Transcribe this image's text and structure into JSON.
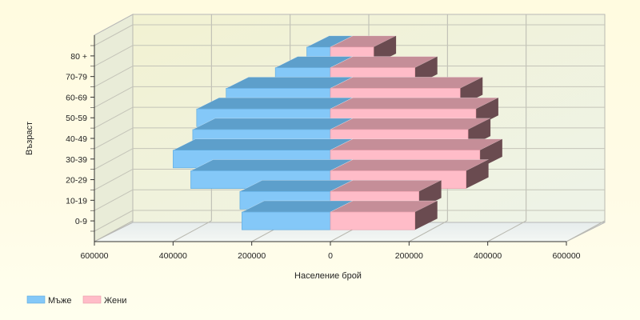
{
  "chart_data": {
    "type": "bar",
    "orientation": "horizontal",
    "style": "3d population pyramid",
    "categories": [
      "0-9",
      "10-19",
      "20-29",
      "30-39",
      "40-49",
      "50-59",
      "60-69",
      "70-79",
      "80 +"
    ],
    "series": [
      {
        "name": "Мъже",
        "color": "#84c8f8",
        "values": [
          -225000,
          -230000,
          -355000,
          -400000,
          -350000,
          -340000,
          -265000,
          -140000,
          -60000
        ]
      },
      {
        "name": "Жени",
        "color": "#ffbcc8",
        "values": [
          215000,
          225000,
          345000,
          380000,
          350000,
          370000,
          330000,
          215000,
          110000
        ]
      }
    ],
    "xlabel": "Население брой",
    "ylabel": "Възраст",
    "xticks": [
      "600000",
      "400000",
      "200000",
      "0",
      "200000",
      "400000",
      "600000"
    ],
    "xlim": [
      -600000,
      600000
    ],
    "grid": true,
    "legend_position": "bottom-left"
  }
}
